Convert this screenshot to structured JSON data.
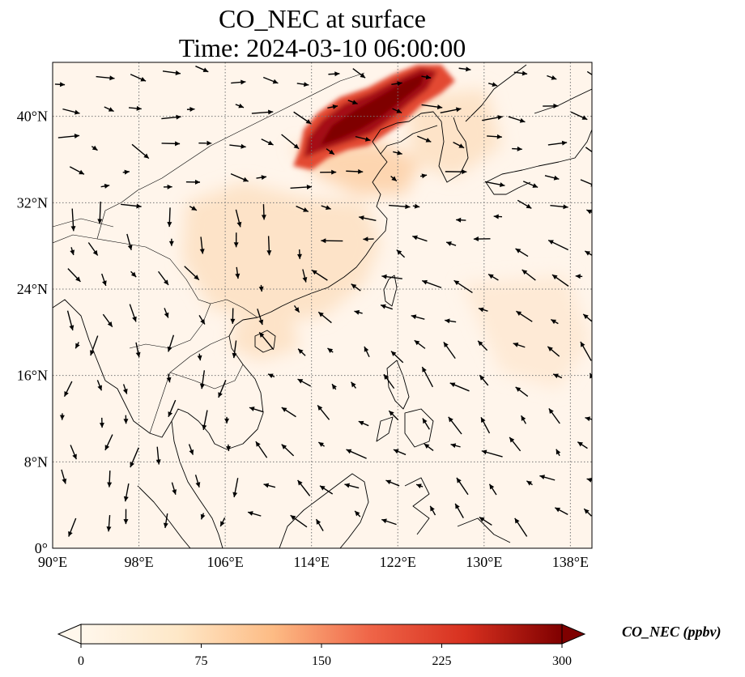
{
  "title": {
    "line1": "CO_NEC at surface",
    "line2": "Time: 2024-03-10 06:00:00"
  },
  "map": {
    "lon_range": [
      90,
      140
    ],
    "lat_range": [
      0,
      45
    ],
    "lat_ticks": [
      {
        "value": 0,
        "label": "0°"
      },
      {
        "value": 8,
        "label": "8°N"
      },
      {
        "value": 16,
        "label": "16°N"
      },
      {
        "value": 24,
        "label": "24°N"
      },
      {
        "value": 32,
        "label": "32°N"
      },
      {
        "value": 40,
        "label": "40°N"
      }
    ],
    "lon_ticks": [
      {
        "value": 90,
        "label": "90°E"
      },
      {
        "value": 98,
        "label": "98°E"
      },
      {
        "value": 106,
        "label": "106°E"
      },
      {
        "value": 114,
        "label": "114°E"
      },
      {
        "value": 122,
        "label": "122°E"
      },
      {
        "value": 130,
        "label": "130°E"
      },
      {
        "value": 138,
        "label": "138°E"
      }
    ],
    "gridlines": true,
    "background_color": "#fff5eb",
    "plume_colors": [
      "#fdd9b4",
      "#f16913",
      "#a50f15",
      "#7f0000"
    ]
  },
  "colorbar": {
    "label": "CO_NEC (ppbv)",
    "colormap": "OrRd",
    "ticks": [
      0,
      75,
      150,
      225,
      300
    ],
    "range": [
      0,
      300
    ],
    "extend": "both"
  }
}
